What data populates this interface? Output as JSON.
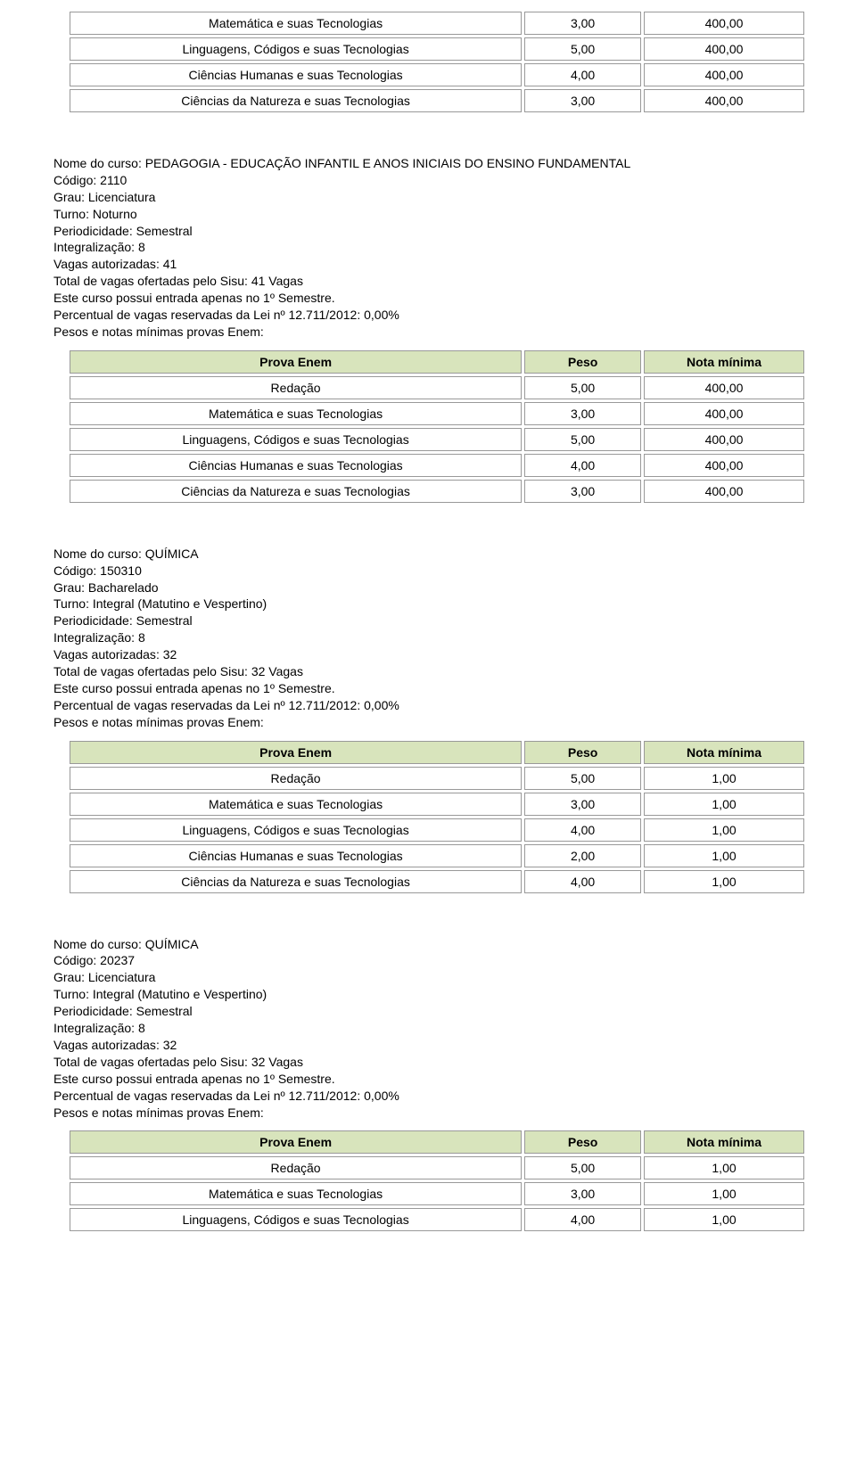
{
  "labels": {
    "nome_do_curso": "Nome do curso",
    "codigo": "Código",
    "grau": "Grau",
    "turno": "Turno",
    "periodicidade": "Periodicidade",
    "integralizacao": "Integralização",
    "vagas_autorizadas": "Vagas autorizadas",
    "total_vagas_prefix": "Total de vagas ofertadas pelo Sisu",
    "vagas_suffix": "Vagas",
    "entrada_text": "Este curso possui entrada apenas no 1º Semestre.",
    "percentual_prefix": "Percentual de vagas reservadas da Lei nº 12.711/2012",
    "pesos_text": "Pesos e notas mínimas provas Enem:",
    "col_prova": "Prova Enem",
    "col_peso": "Peso",
    "col_nota": "Nota mínima"
  },
  "fragment_table": {
    "rows": [
      {
        "name": "Matemática e suas Tecnologias",
        "peso": "3,00",
        "nota": "400,00"
      },
      {
        "name": "Linguagens, Códigos e suas Tecnologias",
        "peso": "5,00",
        "nota": "400,00"
      },
      {
        "name": "Ciências Humanas e suas Tecnologias",
        "peso": "4,00",
        "nota": "400,00"
      },
      {
        "name": "Ciências da Natureza e suas Tecnologias",
        "peso": "3,00",
        "nota": "400,00"
      }
    ]
  },
  "courses": [
    {
      "nome": "PEDAGOGIA - EDUCAÇÃO INFANTIL E ANOS INICIAIS DO ENSINO FUNDAMENTAL",
      "codigo": "2110",
      "grau": "Licenciatura",
      "turno": "Noturno",
      "periodicidade": "Semestral",
      "integralizacao": "8",
      "vagas_autorizadas": "41",
      "total_vagas": "41",
      "percentual": "0,00%",
      "table": {
        "rows": [
          {
            "name": "Redação",
            "peso": "5,00",
            "nota": "400,00"
          },
          {
            "name": "Matemática e suas Tecnologias",
            "peso": "3,00",
            "nota": "400,00"
          },
          {
            "name": "Linguagens, Códigos e suas Tecnologias",
            "peso": "5,00",
            "nota": "400,00"
          },
          {
            "name": "Ciências Humanas e suas Tecnologias",
            "peso": "4,00",
            "nota": "400,00"
          },
          {
            "name": "Ciências da Natureza e suas Tecnologias",
            "peso": "3,00",
            "nota": "400,00"
          }
        ]
      }
    },
    {
      "nome": "QUÍMICA",
      "codigo": "150310",
      "grau": "Bacharelado",
      "turno": "Integral (Matutino e Vespertino)",
      "periodicidade": "Semestral",
      "integralizacao": "8",
      "vagas_autorizadas": "32",
      "total_vagas": "32",
      "percentual": "0,00%",
      "table": {
        "rows": [
          {
            "name": "Redação",
            "peso": "5,00",
            "nota": "1,00"
          },
          {
            "name": "Matemática e suas Tecnologias",
            "peso": "3,00",
            "nota": "1,00"
          },
          {
            "name": "Linguagens, Códigos e suas Tecnologias",
            "peso": "4,00",
            "nota": "1,00"
          },
          {
            "name": "Ciências Humanas e suas Tecnologias",
            "peso": "2,00",
            "nota": "1,00"
          },
          {
            "name": "Ciências da Natureza e suas Tecnologias",
            "peso": "4,00",
            "nota": "1,00"
          }
        ]
      }
    },
    {
      "nome": "QUÍMICA",
      "codigo": "20237",
      "grau": "Licenciatura",
      "turno": "Integral (Matutino e Vespertino)",
      "periodicidade": "Semestral",
      "integralizacao": "8",
      "vagas_autorizadas": "32",
      "total_vagas": "32",
      "percentual": "0,00%",
      "table": {
        "rows": [
          {
            "name": "Redação",
            "peso": "5,00",
            "nota": "1,00"
          },
          {
            "name": "Matemática e suas Tecnologias",
            "peso": "3,00",
            "nota": "1,00"
          },
          {
            "name": "Linguagens, Códigos e suas Tecnologias",
            "peso": "4,00",
            "nota": "1,00"
          }
        ]
      }
    }
  ]
}
